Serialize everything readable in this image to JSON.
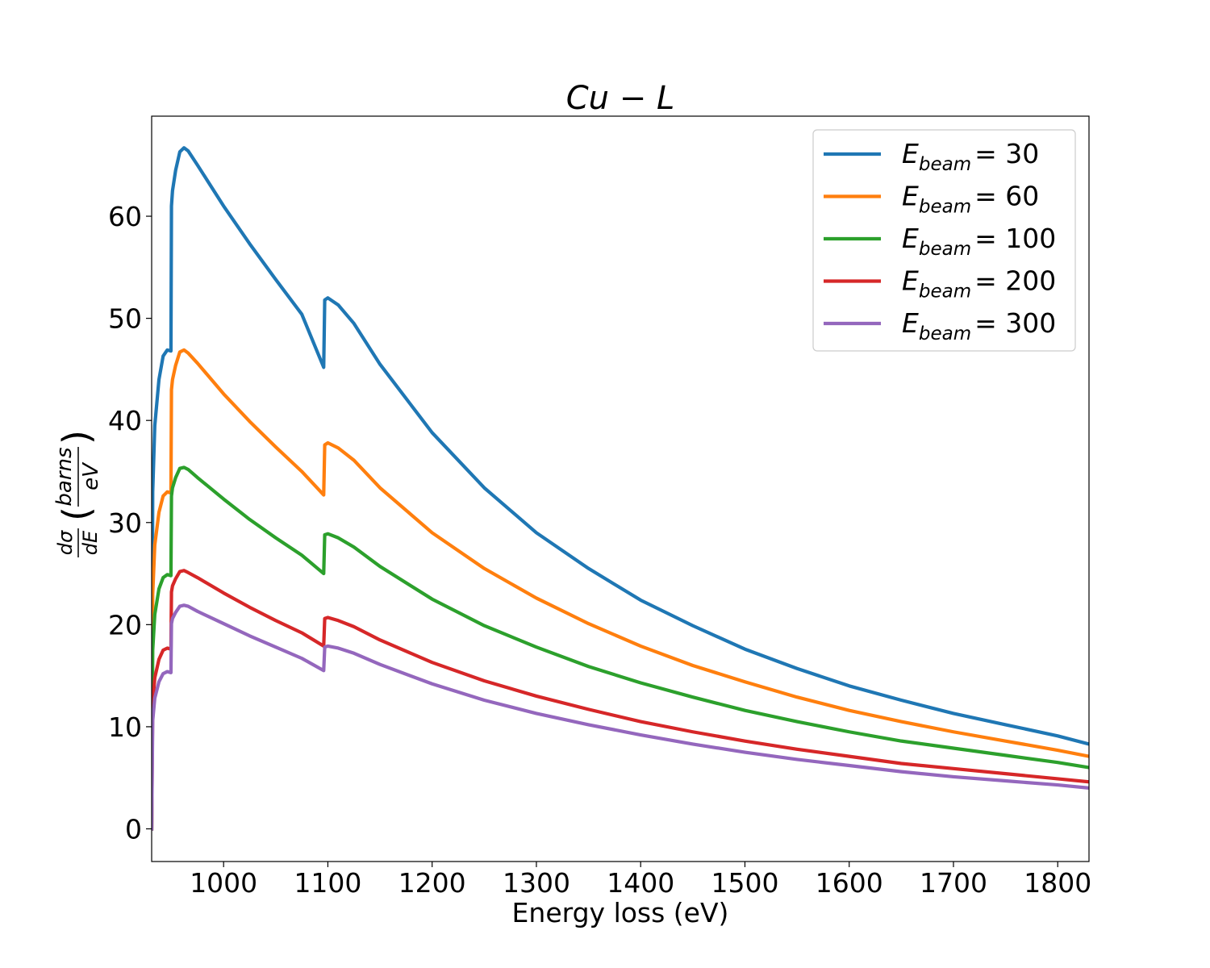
{
  "chart_data": {
    "type": "line",
    "title": "Cu − L",
    "xlabel": "Energy loss (eV)",
    "ylabel": {
      "num_left": "dσ",
      "den_left": "dE",
      "num_right": "barns",
      "den_right": "eV",
      "text": "dσ/dE (barns/eV)"
    },
    "xlim": [
      931,
      1830
    ],
    "ylim": [
      -3.2,
      69.8
    ],
    "xticks": [
      1000,
      1100,
      1200,
      1300,
      1400,
      1500,
      1600,
      1700,
      1800
    ],
    "yticks": [
      0,
      10,
      20,
      30,
      40,
      50,
      60
    ],
    "legend_position": "upper-right",
    "legend_prefix": "E",
    "legend_subscript": "beam",
    "series": [
      {
        "name": "E_beam = 30",
        "label_value": "= 30",
        "color": "#1f77b4",
        "points": [
          [
            931,
            0
          ],
          [
            932,
            33
          ],
          [
            934,
            39.5
          ],
          [
            938,
            44
          ],
          [
            942,
            46.3
          ],
          [
            946,
            46.9
          ],
          [
            949.5,
            46.8
          ],
          [
            950,
            61
          ],
          [
            951,
            62.5
          ],
          [
            954,
            64.5
          ],
          [
            958,
            66.3
          ],
          [
            962,
            66.7
          ],
          [
            966,
            66.4
          ],
          [
            975,
            65
          ],
          [
            1000,
            61
          ],
          [
            1025,
            57.3
          ],
          [
            1050,
            53.8
          ],
          [
            1075,
            50.4
          ],
          [
            1096,
            45.2
          ],
          [
            1097,
            51.8
          ],
          [
            1100,
            52
          ],
          [
            1110,
            51.3
          ],
          [
            1125,
            49.5
          ],
          [
            1150,
            45.5
          ],
          [
            1200,
            38.8
          ],
          [
            1250,
            33.4
          ],
          [
            1300,
            29
          ],
          [
            1350,
            25.5
          ],
          [
            1400,
            22.4
          ],
          [
            1450,
            19.9
          ],
          [
            1500,
            17.6
          ],
          [
            1550,
            15.7
          ],
          [
            1600,
            14
          ],
          [
            1650,
            12.6
          ],
          [
            1700,
            11.3
          ],
          [
            1750,
            10.2
          ],
          [
            1800,
            9.1
          ],
          [
            1830,
            8.3
          ]
        ]
      },
      {
        "name": "E_beam = 60",
        "label_value": "= 60",
        "color": "#ff7f0e",
        "points": [
          [
            931,
            0
          ],
          [
            932,
            23
          ],
          [
            934,
            27.8
          ],
          [
            938,
            31
          ],
          [
            942,
            32.6
          ],
          [
            946,
            33
          ],
          [
            949.5,
            32.9
          ],
          [
            950,
            43
          ],
          [
            951,
            44
          ],
          [
            954,
            45.4
          ],
          [
            958,
            46.7
          ],
          [
            962,
            46.9
          ],
          [
            966,
            46.6
          ],
          [
            975,
            45.6
          ],
          [
            1000,
            42.6
          ],
          [
            1025,
            39.9
          ],
          [
            1050,
            37.4
          ],
          [
            1075,
            35
          ],
          [
            1096,
            32.7
          ],
          [
            1097,
            37.6
          ],
          [
            1100,
            37.8
          ],
          [
            1110,
            37.3
          ],
          [
            1125,
            36.1
          ],
          [
            1150,
            33.4
          ],
          [
            1200,
            29
          ],
          [
            1250,
            25.5
          ],
          [
            1300,
            22.6
          ],
          [
            1350,
            20.1
          ],
          [
            1400,
            17.9
          ],
          [
            1450,
            16
          ],
          [
            1500,
            14.4
          ],
          [
            1550,
            12.9
          ],
          [
            1600,
            11.6
          ],
          [
            1650,
            10.5
          ],
          [
            1700,
            9.5
          ],
          [
            1750,
            8.6
          ],
          [
            1800,
            7.7
          ],
          [
            1830,
            7.1
          ]
        ]
      },
      {
        "name": "E_beam = 100",
        "label_value": "= 100",
        "color": "#2ca02c",
        "points": [
          [
            931,
            0
          ],
          [
            932,
            17.5
          ],
          [
            934,
            21
          ],
          [
            938,
            23.5
          ],
          [
            942,
            24.6
          ],
          [
            946,
            24.9
          ],
          [
            949.5,
            24.8
          ],
          [
            950,
            32.6
          ],
          [
            951,
            33.4
          ],
          [
            954,
            34.4
          ],
          [
            958,
            35.3
          ],
          [
            962,
            35.4
          ],
          [
            966,
            35.2
          ],
          [
            975,
            34.4
          ],
          [
            1000,
            32.3
          ],
          [
            1025,
            30.3
          ],
          [
            1050,
            28.5
          ],
          [
            1075,
            26.8
          ],
          [
            1096,
            25
          ],
          [
            1097,
            28.8
          ],
          [
            1100,
            28.9
          ],
          [
            1110,
            28.5
          ],
          [
            1125,
            27.6
          ],
          [
            1150,
            25.7
          ],
          [
            1200,
            22.5
          ],
          [
            1250,
            19.9
          ],
          [
            1300,
            17.8
          ],
          [
            1350,
            15.9
          ],
          [
            1400,
            14.3
          ],
          [
            1450,
            12.9
          ],
          [
            1500,
            11.6
          ],
          [
            1550,
            10.5
          ],
          [
            1600,
            9.5
          ],
          [
            1650,
            8.6
          ],
          [
            1700,
            7.9
          ],
          [
            1750,
            7.2
          ],
          [
            1800,
            6.5
          ],
          [
            1830,
            6
          ]
        ]
      },
      {
        "name": "E_beam = 200",
        "label_value": "= 200",
        "color": "#d62728",
        "points": [
          [
            931,
            0
          ],
          [
            932,
            12.3
          ],
          [
            934,
            14.8
          ],
          [
            938,
            16.6
          ],
          [
            942,
            17.5
          ],
          [
            946,
            17.7
          ],
          [
            949.5,
            17.6
          ],
          [
            950,
            23.2
          ],
          [
            951,
            23.8
          ],
          [
            954,
            24.5
          ],
          [
            958,
            25.2
          ],
          [
            962,
            25.3
          ],
          [
            966,
            25.1
          ],
          [
            975,
            24.6
          ],
          [
            1000,
            23.1
          ],
          [
            1025,
            21.7
          ],
          [
            1050,
            20.4
          ],
          [
            1075,
            19.2
          ],
          [
            1096,
            17.9
          ],
          [
            1097,
            20.6
          ],
          [
            1100,
            20.7
          ],
          [
            1110,
            20.4
          ],
          [
            1125,
            19.8
          ],
          [
            1150,
            18.5
          ],
          [
            1200,
            16.3
          ],
          [
            1250,
            14.5
          ],
          [
            1300,
            13
          ],
          [
            1350,
            11.7
          ],
          [
            1400,
            10.5
          ],
          [
            1450,
            9.5
          ],
          [
            1500,
            8.6
          ],
          [
            1550,
            7.8
          ],
          [
            1600,
            7.1
          ],
          [
            1650,
            6.4
          ],
          [
            1700,
            5.9
          ],
          [
            1750,
            5.4
          ],
          [
            1800,
            4.9
          ],
          [
            1830,
            4.6
          ]
        ]
      },
      {
        "name": "E_beam = 300",
        "label_value": "= 300",
        "color": "#9467bd",
        "points": [
          [
            931,
            0
          ],
          [
            932,
            10.6
          ],
          [
            934,
            12.8
          ],
          [
            938,
            14.4
          ],
          [
            942,
            15.2
          ],
          [
            946,
            15.4
          ],
          [
            949.5,
            15.3
          ],
          [
            950,
            20.1
          ],
          [
            951,
            20.6
          ],
          [
            954,
            21.2
          ],
          [
            958,
            21.8
          ],
          [
            962,
            21.9
          ],
          [
            966,
            21.8
          ],
          [
            975,
            21.3
          ],
          [
            1000,
            20.1
          ],
          [
            1025,
            18.9
          ],
          [
            1050,
            17.8
          ],
          [
            1075,
            16.7
          ],
          [
            1096,
            15.5
          ],
          [
            1097,
            17.8
          ],
          [
            1100,
            17.9
          ],
          [
            1110,
            17.7
          ],
          [
            1125,
            17.2
          ],
          [
            1150,
            16.1
          ],
          [
            1200,
            14.2
          ],
          [
            1250,
            12.6
          ],
          [
            1300,
            11.3
          ],
          [
            1350,
            10.2
          ],
          [
            1400,
            9.2
          ],
          [
            1450,
            8.3
          ],
          [
            1500,
            7.5
          ],
          [
            1550,
            6.8
          ],
          [
            1600,
            6.2
          ],
          [
            1650,
            5.6
          ],
          [
            1700,
            5.1
          ],
          [
            1750,
            4.7
          ],
          [
            1800,
            4.3
          ],
          [
            1830,
            4
          ]
        ]
      }
    ]
  }
}
